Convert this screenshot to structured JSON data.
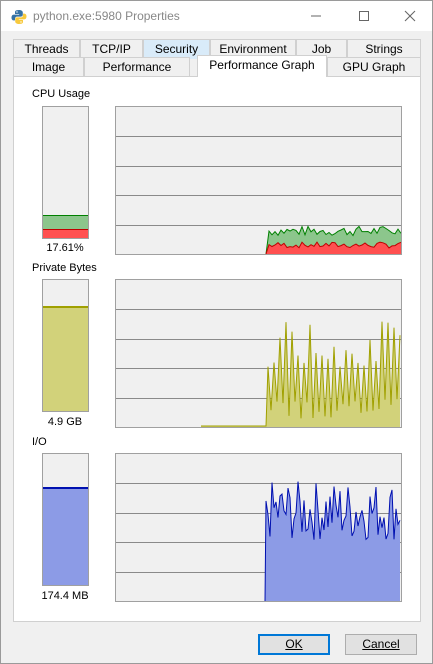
{
  "window": {
    "title": "python.exe:5980 Properties",
    "icon": "python-icon"
  },
  "tabs_row1": [
    {
      "label": "Threads"
    },
    {
      "label": "TCP/IP"
    },
    {
      "label": "Security"
    },
    {
      "label": "Environment"
    },
    {
      "label": "Job"
    },
    {
      "label": "Strings"
    }
  ],
  "tabs_row2": [
    {
      "label": "Image"
    },
    {
      "label": "Performance"
    },
    {
      "label": "Performance Graph"
    },
    {
      "label": "GPU Graph"
    }
  ],
  "active_tab": "Performance Graph",
  "sections": {
    "cpu": {
      "label": "CPU Usage",
      "value_text": "17.61%",
      "meter_fraction": 0.1761,
      "meter_kernel_fraction": 0.07,
      "colors": {
        "total_fill": "#8cc68c",
        "total_line": "#008000",
        "kernel_fill": "#ff5050",
        "kernel_line": "#c00000"
      }
    },
    "private_bytes": {
      "label": "Private Bytes",
      "value_text": "4.9 GB",
      "meter_fraction": 0.8,
      "colors": {
        "fill": "#d2d27a",
        "line": "#a0a000"
      }
    },
    "io": {
      "label": "I/O",
      "value_text": "174.4  MB",
      "meter_fraction": 0.75,
      "colors": {
        "fill": "#8c9be6",
        "line": "#0010b0"
      }
    }
  },
  "buttons": {
    "ok": "OK",
    "cancel": "Cancel"
  }
}
